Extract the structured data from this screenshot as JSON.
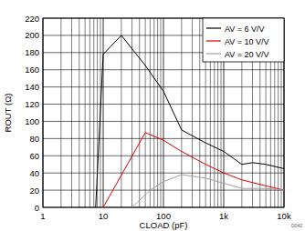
{
  "chart_data": {
    "type": "line",
    "x_label": "CLOAD (pF)",
    "y_label": "ROUT (Ω)",
    "annotation": "D042",
    "log": "x",
    "grid": true,
    "legend": "top-right",
    "xlim": [
      1,
      10000
    ],
    "xticks": [
      1,
      10,
      100,
      {
        "value": 1000,
        "label": "1k"
      },
      {
        "value": 10000,
        "label": "10k"
      }
    ],
    "ylim": [
      0,
      220
    ],
    "yticks": [
      0,
      20,
      40,
      60,
      80,
      100,
      120,
      140,
      160,
      180,
      200,
      220
    ],
    "series": [
      {
        "name": "AV = 6 V/V",
        "color": "#000000",
        "x": [
          7.5,
          10,
          20,
          50,
          100,
          200,
          500,
          1000,
          2000,
          3000,
          5000,
          10000
        ],
        "values": [
          0,
          178,
          200,
          165,
          135,
          90,
          75,
          65,
          50,
          52,
          50,
          45
        ]
      },
      {
        "name": "AV = 10 V/V",
        "color": "#e00000",
        "x": [
          10,
          50,
          100,
          200,
          500,
          1000,
          2000,
          5000,
          10000
        ],
        "values": [
          0,
          87,
          78,
          65,
          50,
          40,
          32,
          25,
          20
        ]
      },
      {
        "name": "AV = 20 V/V",
        "color": "#a0a0a0",
        "x": [
          30,
          60,
          100,
          200,
          500,
          1000,
          2000,
          5000,
          10000
        ],
        "values": [
          0,
          20,
          30,
          38,
          34,
          28,
          22,
          22,
          20
        ]
      }
    ]
  }
}
